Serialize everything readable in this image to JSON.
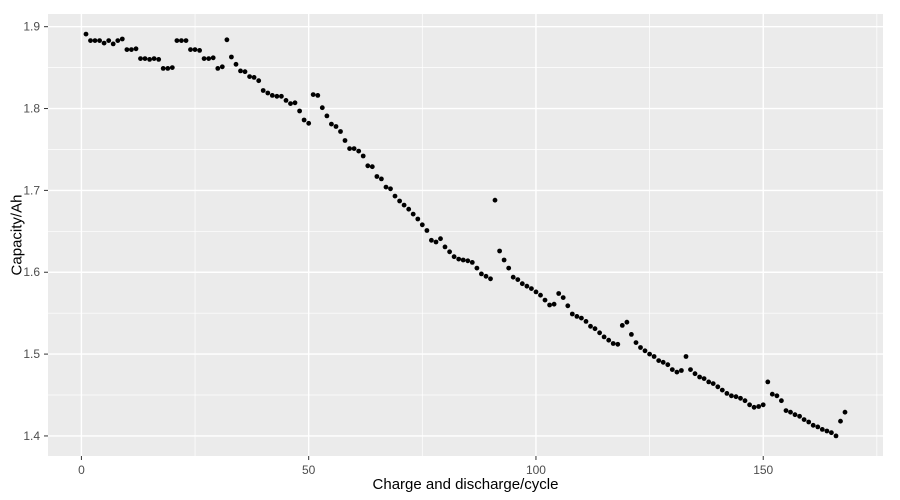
{
  "figure": {
    "kind": "ggplot2-style scatter plot",
    "title": ""
  },
  "chart_data": {
    "type": "scatter",
    "title": "",
    "xlabel": "Charge and discharge/cycle",
    "ylabel": "Capacity/Ah",
    "legend": "none",
    "grid": "white major and minor gridlines on grey panel",
    "xlim": [
      -7.35,
      176.35
    ],
    "ylim": [
      1.3755,
      1.9155
    ],
    "x_major_ticks": [
      0,
      50,
      100,
      150
    ],
    "x_minor_ticks": [
      25,
      75,
      125,
      175
    ],
    "y_major_ticks": [
      1.4,
      1.5,
      1.6,
      1.7,
      1.8,
      1.9
    ],
    "y_minor_ticks": [
      1.45,
      1.55,
      1.65,
      1.75,
      1.85
    ],
    "colors": {
      "panel_background": "#EBEBEB",
      "outer_background": "#FFFFFF",
      "major_gridline": "#FFFFFF",
      "minor_gridline": "#FFFFFF",
      "point": "#000000",
      "tick_mark": "#333333",
      "tick_label": "#4D4D4D",
      "axis_title": "#000000"
    },
    "series": [
      {
        "name": "capacity",
        "x": {
          "start": 1,
          "step": 1,
          "count": 168
        },
        "y": [
          1.891,
          1.883,
          1.883,
          1.883,
          1.88,
          1.883,
          1.879,
          1.883,
          1.885,
          1.872,
          1.872,
          1.873,
          1.861,
          1.861,
          1.86,
          1.861,
          1.86,
          1.849,
          1.849,
          1.85,
          1.883,
          1.883,
          1.883,
          1.872,
          1.872,
          1.871,
          1.861,
          1.861,
          1.862,
          1.849,
          1.851,
          1.884,
          1.863,
          1.854,
          1.846,
          1.845,
          1.839,
          1.838,
          1.834,
          1.822,
          1.819,
          1.816,
          1.815,
          1.815,
          1.81,
          1.806,
          1.807,
          1.797,
          1.786,
          1.782,
          1.817,
          1.816,
          1.801,
          1.791,
          1.781,
          1.778,
          1.772,
          1.761,
          1.751,
          1.751,
          1.748,
          1.742,
          1.73,
          1.729,
          1.717,
          1.714,
          1.704,
          1.702,
          1.693,
          1.687,
          1.682,
          1.677,
          1.671,
          1.665,
          1.658,
          1.651,
          1.639,
          1.637,
          1.641,
          1.631,
          1.625,
          1.619,
          1.616,
          1.615,
          1.614,
          1.612,
          1.605,
          1.598,
          1.595,
          1.592,
          1.688,
          1.626,
          1.615,
          1.605,
          1.594,
          1.591,
          1.586,
          1.583,
          1.58,
          1.576,
          1.572,
          1.566,
          1.56,
          1.561,
          1.574,
          1.569,
          1.559,
          1.549,
          1.546,
          1.544,
          1.54,
          1.534,
          1.531,
          1.526,
          1.521,
          1.517,
          1.513,
          1.512,
          1.535,
          1.539,
          1.524,
          1.514,
          1.508,
          1.504,
          1.5,
          1.497,
          1.492,
          1.49,
          1.487,
          1.481,
          1.478,
          1.48,
          1.497,
          1.481,
          1.476,
          1.472,
          1.47,
          1.466,
          1.464,
          1.46,
          1.456,
          1.452,
          1.449,
          1.448,
          1.446,
          1.443,
          1.438,
          1.435,
          1.436,
          1.438,
          1.466,
          1.451,
          1.449,
          1.443,
          1.431,
          1.429,
          1.426,
          1.424,
          1.42,
          1.417,
          1.413,
          1.411,
          1.408,
          1.406,
          1.404,
          1.4,
          1.418,
          1.429
        ]
      }
    ]
  }
}
